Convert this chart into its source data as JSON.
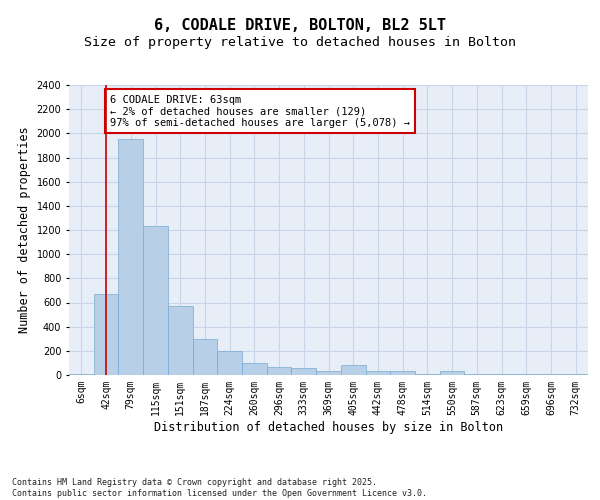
{
  "title_line1": "6, CODALE DRIVE, BOLTON, BL2 5LT",
  "title_line2": "Size of property relative to detached houses in Bolton",
  "xlabel": "Distribution of detached houses by size in Bolton",
  "ylabel": "Number of detached properties",
  "categories": [
    "6sqm",
    "42sqm",
    "79sqm",
    "115sqm",
    "151sqm",
    "187sqm",
    "224sqm",
    "260sqm",
    "296sqm",
    "333sqm",
    "369sqm",
    "405sqm",
    "442sqm",
    "478sqm",
    "514sqm",
    "550sqm",
    "587sqm",
    "623sqm",
    "659sqm",
    "696sqm",
    "732sqm"
  ],
  "values": [
    5,
    670,
    1950,
    1230,
    575,
    295,
    200,
    100,
    65,
    55,
    30,
    85,
    30,
    30,
    10,
    30,
    5,
    5,
    5,
    5,
    5
  ],
  "bar_color": "#b8cfe8",
  "bar_edge_color": "#7aaad0",
  "grid_color": "#c8d4e8",
  "background_color": "#e8eef8",
  "vline_x": 1,
  "vline_color": "#cc0000",
  "annotation_text": "6 CODALE DRIVE: 63sqm\n← 2% of detached houses are smaller (129)\n97% of semi-detached houses are larger (5,078) →",
  "annotation_box_color": "#cc0000",
  "ylim": [
    0,
    2400
  ],
  "yticks": [
    0,
    200,
    400,
    600,
    800,
    1000,
    1200,
    1400,
    1600,
    1800,
    2000,
    2200,
    2400
  ],
  "footnote": "Contains HM Land Registry data © Crown copyright and database right 2025.\nContains public sector information licensed under the Open Government Licence v3.0.",
  "title_fontsize": 11,
  "subtitle_fontsize": 9.5,
  "tick_fontsize": 7,
  "label_fontsize": 8.5,
  "annot_fontsize": 7.5,
  "footnote_fontsize": 6.0
}
